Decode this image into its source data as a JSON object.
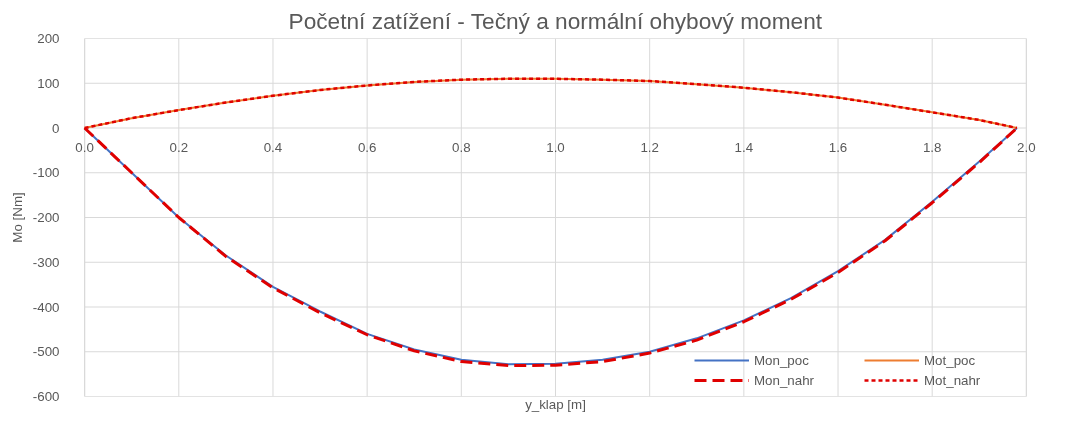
{
  "chart_data": {
    "type": "line",
    "title": "Početní zatížení - Tečný a normální ohybový moment",
    "xlabel": "y_klap [m]",
    "ylabel": "Mo [Nm]",
    "x": [
      0,
      0.1,
      0.2,
      0.3,
      0.4,
      0.5,
      0.6,
      0.7,
      0.8,
      0.9,
      1.0,
      1.1,
      1.2,
      1.3,
      1.4,
      1.5,
      1.6,
      1.7,
      1.8,
      1.9,
      1.98
    ],
    "series": [
      {
        "name": "Mon_poc",
        "color": "#4472c4",
        "line_style": "solid",
        "values": [
          0,
          -100,
          -200,
          -285,
          -355,
          -410,
          -460,
          -495,
          -518,
          -528,
          -527,
          -518,
          -500,
          -470,
          -430,
          -380,
          -320,
          -250,
          -165,
          -75,
          0
        ]
      },
      {
        "name": "Mot_poc",
        "color": "#ed7d31",
        "line_style": "solid",
        "values": [
          0,
          22,
          40,
          57,
          72,
          85,
          95,
          103,
          108,
          110,
          110,
          108,
          105,
          98,
          90,
          80,
          68,
          52,
          35,
          18,
          0
        ]
      },
      {
        "name": "Mon_nahr",
        "color": "#e00000",
        "line_style": "dashed",
        "values": [
          0,
          -100,
          -200,
          -287,
          -357,
          -413,
          -462,
          -498,
          -522,
          -531,
          -530,
          -522,
          -503,
          -474,
          -433,
          -383,
          -323,
          -252,
          -167,
          -77,
          0
        ]
      },
      {
        "name": "Mot_nahr",
        "color": "#e00000",
        "line_style": "dotted",
        "values": [
          0,
          22,
          40,
          57,
          72,
          85,
          95,
          103,
          108,
          110,
          110,
          108,
          105,
          98,
          90,
          80,
          68,
          52,
          35,
          18,
          0
        ]
      }
    ],
    "xlim": [
      0,
      2.0
    ],
    "ylim": [
      -600,
      200
    ],
    "xticks": [
      {
        "value": 0,
        "label": "0.0"
      },
      0.2,
      0.4,
      0.6,
      0.8,
      {
        "value": 1.0,
        "label": "1.0"
      },
      1.2,
      1.4,
      1.6,
      1.8,
      {
        "value": 2.0,
        "label": "2.0"
      }
    ],
    "yticks": [
      -600,
      -500,
      -400,
      -300,
      -200,
      -100,
      0,
      100,
      200
    ],
    "grid": true,
    "legend": "bottom right",
    "marker": "none"
  }
}
